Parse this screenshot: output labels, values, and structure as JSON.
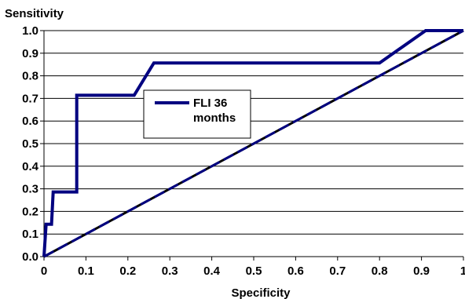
{
  "chart_data": {
    "type": "line",
    "title": "",
    "xlabel": "Specificity",
    "ylabel": "Sensitivity",
    "xlim": [
      0,
      1
    ],
    "ylim": [
      0,
      1
    ],
    "x_ticks": [
      "0",
      "0.1",
      "0.2",
      "0.3",
      "0.4",
      "0.5",
      "0.6",
      "0.7",
      "0.8",
      "0.9",
      "1"
    ],
    "y_ticks": [
      "0.0",
      "0.1",
      "0.2",
      "0.3",
      "0.4",
      "0.5",
      "0.6",
      "0.7",
      "0.8",
      "0.9",
      "1.0"
    ],
    "grid": "horizontal",
    "legend_position": "center-left",
    "series": [
      {
        "name": "FLI 36 months",
        "color": "#000080",
        "style": "solid",
        "points": [
          [
            0,
            0
          ],
          [
            0.005,
            0.143
          ],
          [
            0.018,
            0.143
          ],
          [
            0.022,
            0.286
          ],
          [
            0.078,
            0.286
          ],
          [
            0.078,
            0.714
          ],
          [
            0.215,
            0.714
          ],
          [
            0.262,
            0.857
          ],
          [
            0.8,
            0.857
          ],
          [
            0.91,
            1.0
          ],
          [
            1.0,
            1.0
          ]
        ]
      },
      {
        "name": "",
        "color": "#000080",
        "style": "dashed",
        "points": [
          [
            0,
            0
          ],
          [
            1,
            1
          ]
        ]
      }
    ],
    "legend_label_lines": [
      "FLI 36",
      "months"
    ]
  }
}
